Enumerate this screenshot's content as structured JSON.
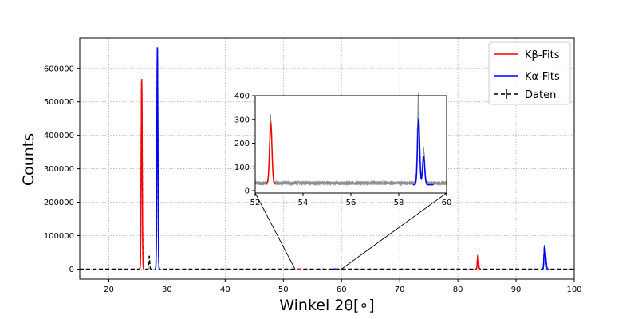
{
  "chart_data": {
    "type": "line",
    "main": {
      "xlabel": "Winkel 2θ[∘]",
      "ylabel": "Counts",
      "xlim": [
        15,
        100
      ],
      "ylim": [
        -30000,
        690000
      ],
      "xticks": [
        20,
        30,
        40,
        50,
        60,
        70,
        80,
        90,
        100
      ],
      "yticks": [
        0,
        100000,
        200000,
        300000,
        400000,
        500000,
        600000
      ],
      "grid": true,
      "legend_position": "top-right",
      "legend": [
        {
          "id": "kbeta",
          "label": "Kβ-Fits",
          "color": "#ff0000",
          "style": "solid"
        },
        {
          "id": "kalpha",
          "label": "Kα-Fits",
          "color": "#0000ff",
          "style": "solid"
        },
        {
          "id": "daten",
          "label": "Daten",
          "color": "#000000",
          "style": "dashed"
        }
      ],
      "series": [
        {
          "name": "Kβ-Fits",
          "color": "#ff0000",
          "peaks": [
            {
              "x": 25.65,
              "y": 568000,
              "w": 0.09
            },
            {
              "x": 52.65,
              "y": 260,
              "w": 0.05
            },
            {
              "x": 83.45,
              "y": 42000,
              "w": 0.1
            }
          ]
        },
        {
          "name": "Kα-Fits",
          "color": "#0000ff",
          "peaks": [
            {
              "x": 28.35,
              "y": 663000,
              "w": 0.09
            },
            {
              "x": 58.83,
              "y": 300,
              "w": 0.05
            },
            {
              "x": 59.05,
              "y": 145,
              "w": 0.05
            },
            {
              "x": 94.9,
              "y": 65000,
              "w": 0.1
            },
            {
              "x": 95.1,
              "y": 30000,
              "w": 0.1
            }
          ]
        },
        {
          "name": "Daten",
          "color": "#000000",
          "baseline": 25,
          "peaks": [
            {
              "x": 25.65,
              "y": 566000,
              "w": 0.09
            },
            {
              "x": 26.95,
              "y": 38000,
              "w": 0.08
            },
            {
              "x": 28.35,
              "y": 661000,
              "w": 0.09
            },
            {
              "x": 83.45,
              "y": 41000,
              "w": 0.1
            },
            {
              "x": 94.9,
              "y": 64000,
              "w": 0.1
            },
            {
              "x": 95.1,
              "y": 29000,
              "w": 0.1
            }
          ]
        }
      ]
    },
    "inset": {
      "xlim": [
        52,
        60
      ],
      "ylim": [
        -10,
        400
      ],
      "xticks": [
        52,
        54,
        56,
        58,
        60
      ],
      "yticks": [
        0,
        100,
        200,
        300,
        400
      ],
      "fits": [
        {
          "name": "Kβ-Fits",
          "color": "#ff0000",
          "x": 52.65,
          "y": 255,
          "w": 0.05,
          "baseline": 28,
          "range": [
            52.45,
            52.85
          ]
        },
        {
          "name": "Kα-Fits",
          "color": "#0000ff",
          "x": 58.83,
          "y": 275,
          "w": 0.045,
          "baseline": 25,
          "range": [
            58.6,
            59.45
          ],
          "x2": 59.04,
          "y2": 120
        }
      ],
      "data": {
        "baseline": 32,
        "noise": 8,
        "peaks": [
          {
            "x": 52.65,
            "y": 260,
            "w": 0.05
          },
          {
            "x": 58.82,
            "y": 330,
            "w": 0.045
          },
          {
            "x": 59.04,
            "y": 140,
            "w": 0.045
          }
        ]
      }
    }
  }
}
